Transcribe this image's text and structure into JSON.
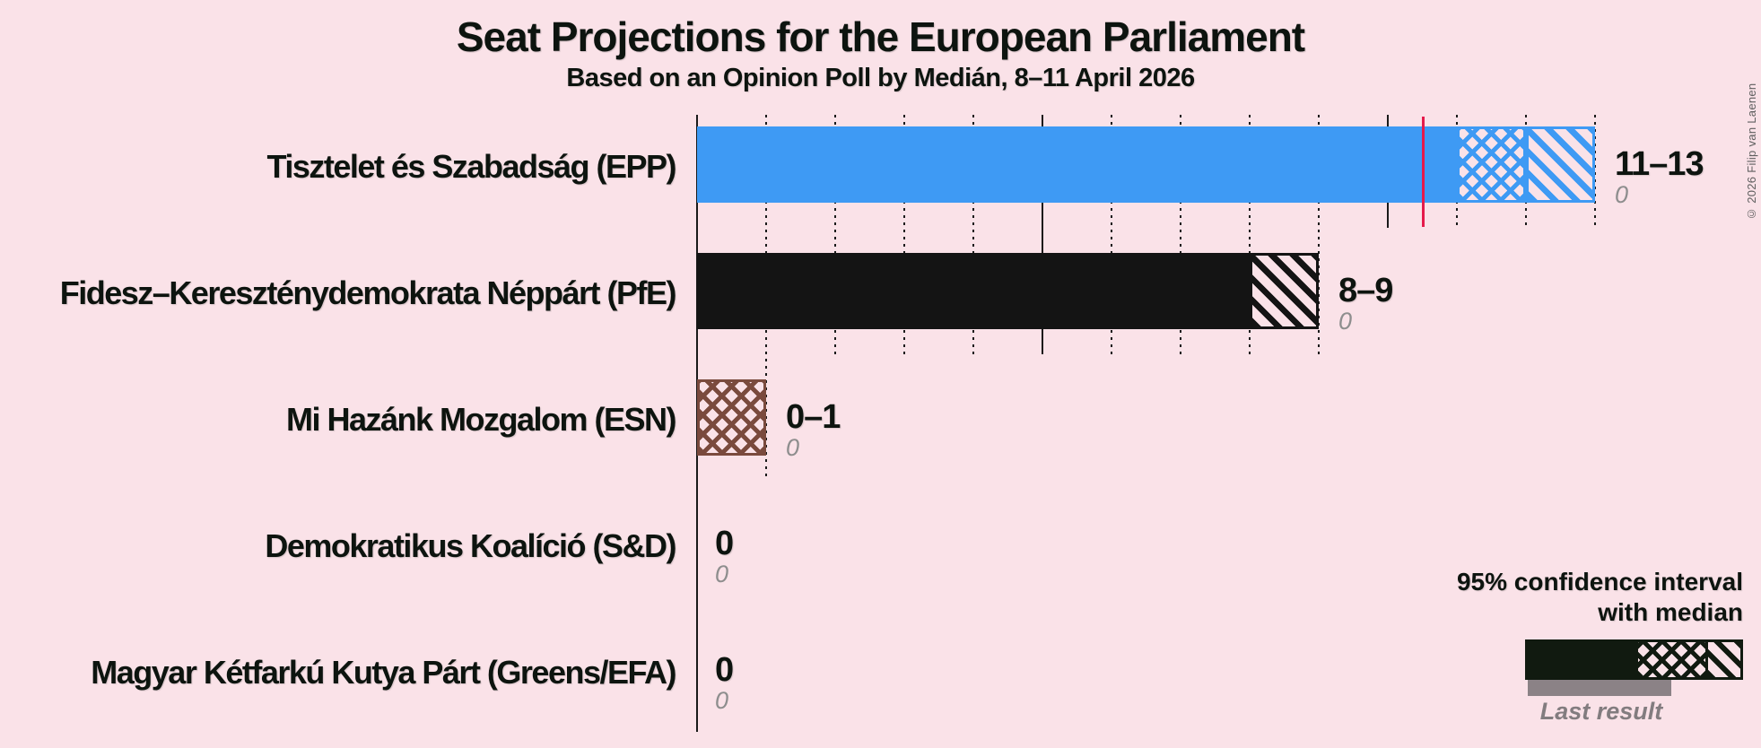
{
  "title": "Seat Projections for the European Parliament",
  "subtitle": "Based on an Opinion Poll by Medián, 8–11 April 2026",
  "copyright": "© 2026 Filip van Laenen",
  "legend": {
    "ci_line1": "95% confidence interval",
    "ci_line2": "with median",
    "last_result": "Last result"
  },
  "colors": {
    "background": "#fae2e8",
    "text": "#0d140f",
    "gridline": "#1a1a1a",
    "majority_line": "#e51a4b",
    "last_result_gray": "#8e8e8e",
    "legend_dark": "#111a10",
    "epp_blue": "#3e9af4",
    "pfe_black": "#141414",
    "esn_brown": "#7a4a3d"
  },
  "chart_data": {
    "type": "bar",
    "title": "Seat Projections for the European Parliament",
    "subtitle": "Based on an Opinion Poll by Medián, 8–11 April 2026",
    "orientation": "horizontal",
    "x_axis": {
      "min": 0,
      "max": 13,
      "gridline_interval": 1,
      "major_interval": 5,
      "ticks_labeled": false
    },
    "majority_line_value": 10.5,
    "legend_position": "bottom-right",
    "rows": [
      {
        "party": "Tisztelet és Szabadság (EPP)",
        "color": "#3e9af4",
        "ci_low": 11,
        "median": 12,
        "ci_high": 13,
        "label": "11–13",
        "last_result": 0,
        "last_result_label": "0"
      },
      {
        "party": "Fidesz–Kereszténydemokrata Néppárt (PfE)",
        "color": "#141414",
        "ci_low": 8,
        "median": 8,
        "ci_high": 9,
        "label": "8–9",
        "last_result": 0,
        "last_result_label": "0"
      },
      {
        "party": "Mi Hazánk Mozgalom (ESN)",
        "color": "#7a4a3d",
        "ci_low": 0,
        "median": 1,
        "ci_high": 1,
        "label": "0–1",
        "last_result": 0,
        "last_result_label": "0"
      },
      {
        "party": "Demokratikus Koalíció (S&D)",
        "color": "#141414",
        "ci_low": 0,
        "median": 0,
        "ci_high": 0,
        "label": "0",
        "last_result": 0,
        "last_result_label": "0"
      },
      {
        "party": "Magyar Kétfarkú Kutya Párt (Greens/EFA)",
        "color": "#141414",
        "ci_low": 0,
        "median": 0,
        "ci_high": 0,
        "label": "0",
        "last_result": 0,
        "last_result_label": "0"
      }
    ]
  }
}
